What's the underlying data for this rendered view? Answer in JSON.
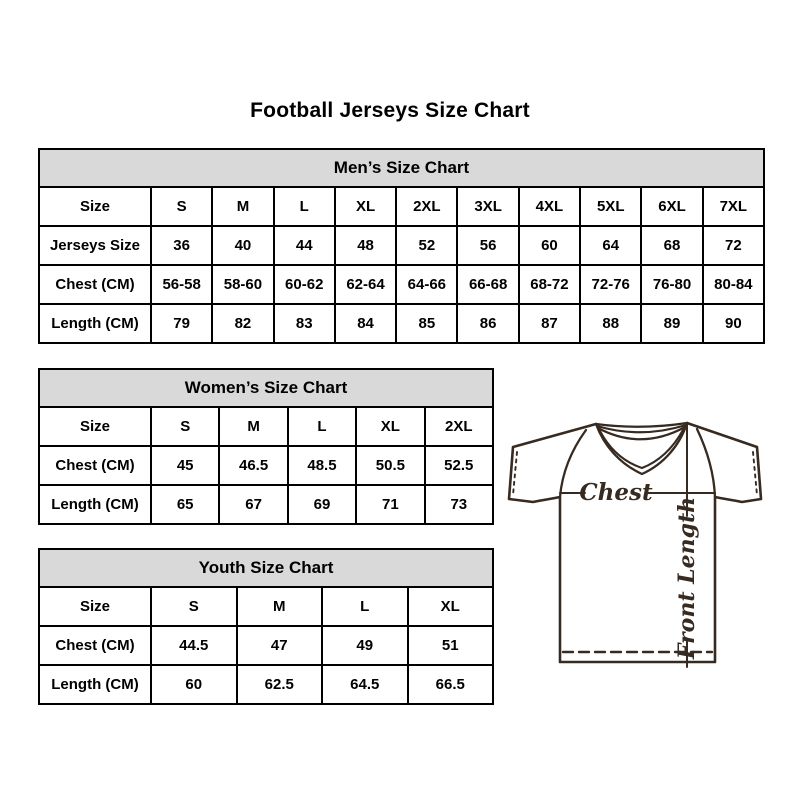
{
  "page_title": "Football Jerseys Size Chart",
  "chart_data": [
    {
      "type": "table",
      "title": "Men’s Size Chart",
      "rows": [
        [
          "Size",
          "S",
          "M",
          "L",
          "XL",
          "2XL",
          "3XL",
          "4XL",
          "5XL",
          "6XL",
          "7XL"
        ],
        [
          "Jerseys Size",
          "36",
          "40",
          "44",
          "48",
          "52",
          "56",
          "60",
          "64",
          "68",
          "72"
        ],
        [
          "Chest (CM)",
          "56-58",
          "58-60",
          "60-62",
          "62-64",
          "64-66",
          "66-68",
          "68-72",
          "72-76",
          "76-80",
          "80-84"
        ],
        [
          "Length (CM)",
          "79",
          "82",
          "83",
          "84",
          "85",
          "86",
          "87",
          "88",
          "89",
          "90"
        ]
      ]
    },
    {
      "type": "table",
      "title": "Women’s Size Chart",
      "rows": [
        [
          "Size",
          "S",
          "M",
          "L",
          "XL",
          "2XL"
        ],
        [
          "Chest (CM)",
          "45",
          "46.5",
          "48.5",
          "50.5",
          "52.5"
        ],
        [
          "Length (CM)",
          "65",
          "67",
          "69",
          "71",
          "73"
        ]
      ]
    },
    {
      "type": "table",
      "title": "Youth Size Chart",
      "rows": [
        [
          "Size",
          "S",
          "M",
          "L",
          "XL"
        ],
        [
          "Chest (CM)",
          "44.5",
          "47",
          "49",
          "51"
        ],
        [
          "Length (CM)",
          "60",
          "62.5",
          "64.5",
          "66.5"
        ]
      ]
    }
  ],
  "diagram": {
    "chest_label": "Chest",
    "front_length_label": "Front Length"
  },
  "colors": {
    "table_header_bg": "#d9d9d9",
    "table_border": "#000000",
    "diagram_line": "#362a21",
    "text": "#000000"
  }
}
